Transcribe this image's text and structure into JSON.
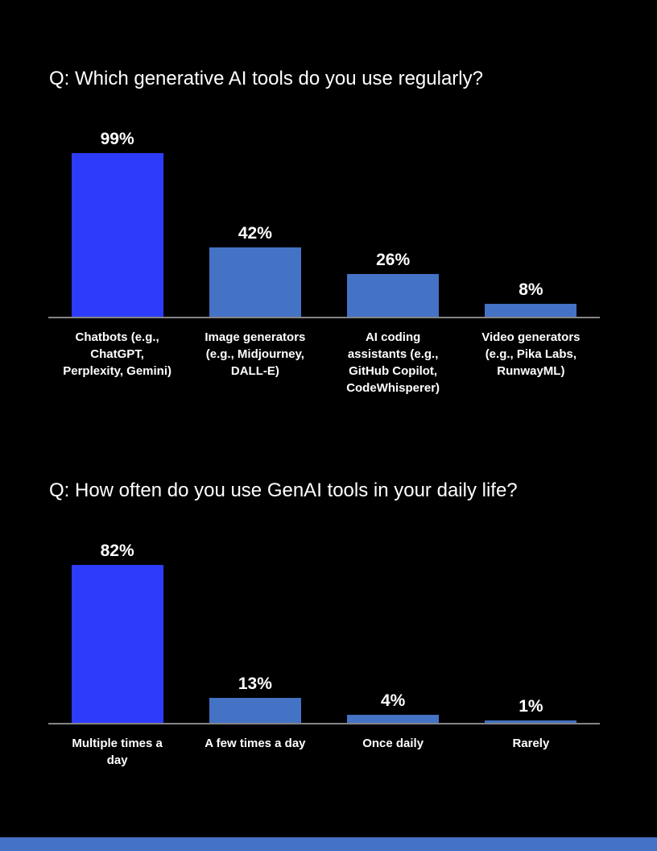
{
  "page": {
    "background": "#000000"
  },
  "colors": {
    "highlight_bar": "#2D3CFA",
    "bar": "#4472C4",
    "axis_line": "#858585",
    "text": "#FFFFFF",
    "footer_accent": "#4472C4"
  },
  "charts": [
    {
      "title": "Q: Which generative AI tools do you use regularly?",
      "chart_data": {
        "type": "bar",
        "categories": [
          "Chatbots (e.g.,\nChatGPT,\nPerplexity, Gemini)",
          "Image generators\n(e.g., Midjourney,\nDALL-E)",
          "AI coding\nassistants (e.g.,\nGitHub Copilot,\nCodeWhisperer)",
          "Video generators\n(e.g., Pika Labs,\nRunwayML)"
        ],
        "values": [
          99,
          42,
          26,
          8
        ],
        "data_labels": [
          "99%",
          "42%",
          "26%",
          "8%"
        ],
        "unit": "%",
        "title": "Q: Which generative AI tools do you use regularly?",
        "xlabel": "",
        "ylabel": "",
        "ylim": [
          0,
          100
        ],
        "grid": false,
        "legend": false,
        "highlight_index": 0
      }
    },
    {
      "title": "Q: How often do you use GenAI tools in your daily life?",
      "chart_data": {
        "type": "bar",
        "categories": [
          "Multiple times a\nday",
          "A few times a day",
          "Once daily",
          "Rarely"
        ],
        "values": [
          82,
          13,
          4,
          1
        ],
        "data_labels": [
          "82%",
          "13%",
          "4%",
          "1%"
        ],
        "unit": "%",
        "title": "Q: How often do you use GenAI tools in your daily life?",
        "xlabel": "",
        "ylabel": "",
        "ylim": [
          0,
          100
        ],
        "grid": false,
        "legend": false,
        "highlight_index": 0
      }
    }
  ],
  "footer": {
    "accent_bar": true
  }
}
